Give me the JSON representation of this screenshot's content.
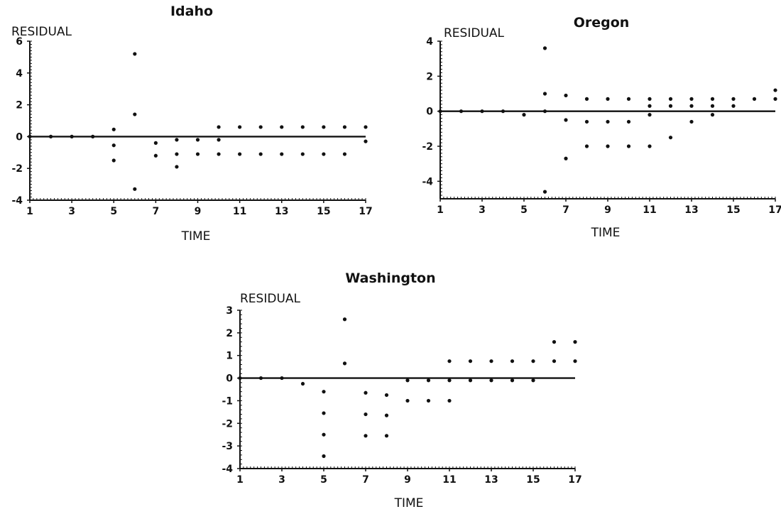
{
  "chart_data": [
    {
      "type": "scatter",
      "title": "Idaho",
      "ylabel": "RESIDUAL",
      "xlabel": "TIME",
      "xlim": [
        1,
        17
      ],
      "ylim": [
        -4,
        6
      ],
      "xticks": [
        1,
        3,
        5,
        7,
        9,
        11,
        13,
        15,
        17
      ],
      "yticks": [
        -4,
        -2,
        0,
        2,
        4,
        6
      ],
      "zero_line": true,
      "grid": false,
      "points": [
        [
          1,
          0
        ],
        [
          2,
          0
        ],
        [
          3,
          0
        ],
        [
          4,
          0
        ],
        [
          5,
          0.45
        ],
        [
          5,
          -0.55
        ],
        [
          5,
          -1.5
        ],
        [
          6,
          5.2
        ],
        [
          6,
          1.4
        ],
        [
          6,
          -3.3
        ],
        [
          7,
          -0.4
        ],
        [
          7,
          -1.2
        ],
        [
          8,
          -0.2
        ],
        [
          8,
          -1.1
        ],
        [
          8,
          -1.9
        ],
        [
          9,
          -0.2
        ],
        [
          9,
          -1.1
        ],
        [
          10,
          0.6
        ],
        [
          10,
          -0.2
        ],
        [
          10,
          -1.1
        ],
        [
          11,
          0.6
        ],
        [
          11,
          -1.1
        ],
        [
          12,
          0.6
        ],
        [
          12,
          -1.1
        ],
        [
          13,
          0.6
        ],
        [
          13,
          -1.1
        ],
        [
          14,
          0.6
        ],
        [
          14,
          -1.1
        ],
        [
          15,
          0.6
        ],
        [
          15,
          -1.1
        ],
        [
          16,
          0.6
        ],
        [
          16,
          -1.1
        ],
        [
          17,
          0.6
        ],
        [
          17,
          -0.3
        ]
      ]
    },
    {
      "type": "scatter",
      "title": "Oregon",
      "ylabel": "RESIDUAL",
      "xlabel": "TIME",
      "xlim": [
        1,
        17
      ],
      "ylim": [
        -5,
        4
      ],
      "xticks": [
        1,
        3,
        5,
        7,
        9,
        11,
        13,
        15,
        17
      ],
      "yticks": [
        -4,
        -2,
        0,
        2,
        4
      ],
      "zero_line": true,
      "grid": false,
      "points": [
        [
          1,
          0
        ],
        [
          2,
          0
        ],
        [
          3,
          0
        ],
        [
          4,
          0
        ],
        [
          5,
          -0.2
        ],
        [
          6,
          3.6
        ],
        [
          6,
          1.0
        ],
        [
          6,
          0
        ],
        [
          6,
          -4.6
        ],
        [
          7,
          0.9
        ],
        [
          7,
          -0.5
        ],
        [
          7,
          -2.7
        ],
        [
          8,
          0.7
        ],
        [
          8,
          -0.6
        ],
        [
          8,
          -2.0
        ],
        [
          9,
          0.7
        ],
        [
          9,
          -0.6
        ],
        [
          9,
          -2.0
        ],
        [
          10,
          0.7
        ],
        [
          10,
          -0.6
        ],
        [
          10,
          -2.0
        ],
        [
          11,
          0.7
        ],
        [
          11,
          0.3
        ],
        [
          11,
          -0.2
        ],
        [
          11,
          -2.0
        ],
        [
          12,
          0.7
        ],
        [
          12,
          0.3
        ],
        [
          12,
          -1.5
        ],
        [
          13,
          0.7
        ],
        [
          13,
          0.3
        ],
        [
          13,
          -0.6
        ],
        [
          14,
          0.7
        ],
        [
          14,
          0.3
        ],
        [
          14,
          -0.2
        ],
        [
          15,
          0.7
        ],
        [
          15,
          0.3
        ],
        [
          16,
          0.7
        ],
        [
          17,
          1.2
        ],
        [
          17,
          0.7
        ]
      ]
    },
    {
      "type": "scatter",
      "title": "Washington",
      "ylabel": "RESIDUAL",
      "xlabel": "TIME",
      "xlim": [
        1,
        17
      ],
      "ylim": [
        -4,
        3
      ],
      "xticks": [
        1,
        3,
        5,
        7,
        9,
        11,
        13,
        15,
        17
      ],
      "yticks": [
        -4,
        -3,
        -2,
        -1,
        0,
        1,
        2,
        3
      ],
      "zero_line": true,
      "grid": false,
      "points": [
        [
          1,
          0
        ],
        [
          2,
          0
        ],
        [
          3,
          0
        ],
        [
          4,
          -0.25
        ],
        [
          5,
          -0.6
        ],
        [
          5,
          -1.55
        ],
        [
          5,
          -2.5
        ],
        [
          5,
          -3.45
        ],
        [
          6,
          2.6
        ],
        [
          6,
          0.65
        ],
        [
          7,
          -0.65
        ],
        [
          7,
          -1.6
        ],
        [
          7,
          -2.55
        ],
        [
          8,
          -0.75
        ],
        [
          8,
          -1.65
        ],
        [
          8,
          -2.55
        ],
        [
          9,
          -0.1
        ],
        [
          9,
          -1.0
        ],
        [
          10,
          -0.1
        ],
        [
          10,
          -1.0
        ],
        [
          11,
          0.75
        ],
        [
          11,
          -0.1
        ],
        [
          11,
          -1.0
        ],
        [
          12,
          0.75
        ],
        [
          12,
          -0.1
        ],
        [
          13,
          0.75
        ],
        [
          13,
          -0.1
        ],
        [
          14,
          0.75
        ],
        [
          14,
          -0.1
        ],
        [
          15,
          0.75
        ],
        [
          15,
          -0.1
        ],
        [
          16,
          1.6
        ],
        [
          16,
          0.75
        ],
        [
          17,
          1.6
        ],
        [
          17,
          0.75
        ]
      ]
    }
  ]
}
